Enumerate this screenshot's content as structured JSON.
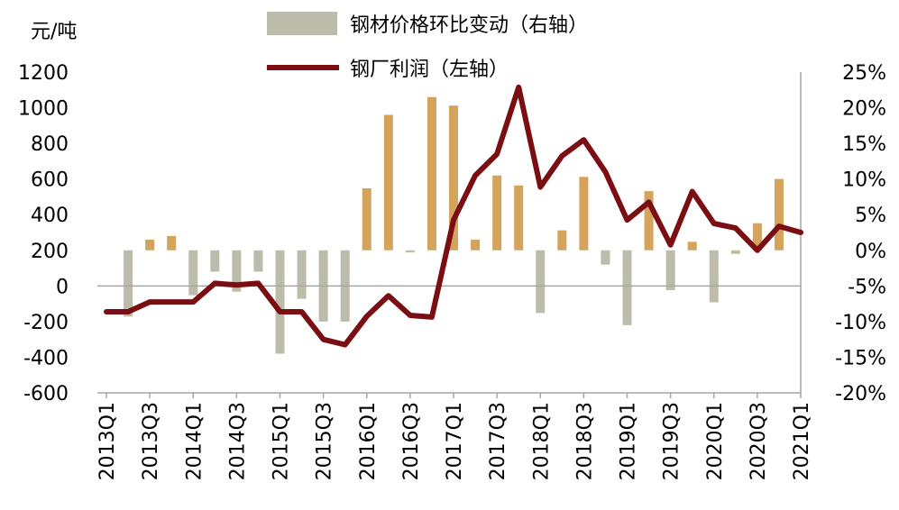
{
  "chart_data": {
    "type": "bar+line",
    "title": "",
    "y_left_unit": "元/吨",
    "y_left_range": [
      -600,
      1200
    ],
    "y_left_ticks": [
      "1200",
      "1000",
      "800",
      "600",
      "400",
      "200",
      "0",
      "-200",
      "-400",
      "-600"
    ],
    "y_right_range": [
      -20,
      25
    ],
    "y_right_ticks": [
      "25%",
      "20%",
      "15%",
      "10%",
      "5%",
      "0%",
      "-5%",
      "-10%",
      "-15%",
      "-20%"
    ],
    "x_tick_labels": [
      "2013Q1",
      "2013Q3",
      "2014Q1",
      "2014Q3",
      "2015Q1",
      "2015Q3",
      "2016Q1",
      "2016Q3",
      "2017Q1",
      "2017Q3",
      "2018Q1",
      "2018Q3",
      "2019Q1",
      "2019Q3",
      "2020Q1",
      "2020Q3",
      "2021Q1"
    ],
    "categories": [
      "2013Q1",
      "2013Q2",
      "2013Q3",
      "2013Q4",
      "2014Q1",
      "2014Q2",
      "2014Q3",
      "2014Q4",
      "2015Q1",
      "2015Q2",
      "2015Q3",
      "2015Q4",
      "2016Q1",
      "2016Q2",
      "2016Q3",
      "2016Q4",
      "2017Q1",
      "2017Q2",
      "2017Q3",
      "2017Q4",
      "2018Q1",
      "2018Q2",
      "2018Q3",
      "2018Q4",
      "2019Q1",
      "2019Q2",
      "2019Q3",
      "2019Q4",
      "2020Q1",
      "2020Q2",
      "2020Q3",
      "2020Q4",
      "2021Q1"
    ],
    "legend": [
      "钢材价格环比变动（右轴）",
      "钢厂利润（左轴）"
    ],
    "series": [
      {
        "name": "钢材价格环比变动（右轴）",
        "axis": "right",
        "type": "bar",
        "values": [
          null,
          -9.3,
          1.5,
          2,
          -6.3,
          -3,
          -5.8,
          -3,
          -14.5,
          -6.8,
          -10,
          -10,
          8.7,
          19,
          -0.3,
          21.5,
          20.3,
          1.5,
          10.5,
          9.1,
          -8.8,
          2.8,
          10.3,
          -2,
          -10.5,
          8.3,
          -5.6,
          1.2,
          -7.3,
          -0.5,
          3.8,
          10,
          null
        ]
      },
      {
        "name": "钢厂利润（左轴）",
        "axis": "left",
        "type": "line",
        "values": [
          -145,
          -145,
          -90,
          -90,
          -90,
          15,
          5,
          15,
          -145,
          -145,
          -300,
          -330,
          -170,
          -55,
          -165,
          -175,
          370,
          620,
          740,
          1115,
          555,
          730,
          820,
          640,
          370,
          470,
          230,
          530,
          350,
          325,
          200,
          335,
          300
        ]
      }
    ],
    "colors": {
      "bar_positive": "#D4A45C",
      "bar_negative": "#BDBBAA",
      "line": "#7A0E12",
      "axis": "#A6A6A6"
    }
  }
}
